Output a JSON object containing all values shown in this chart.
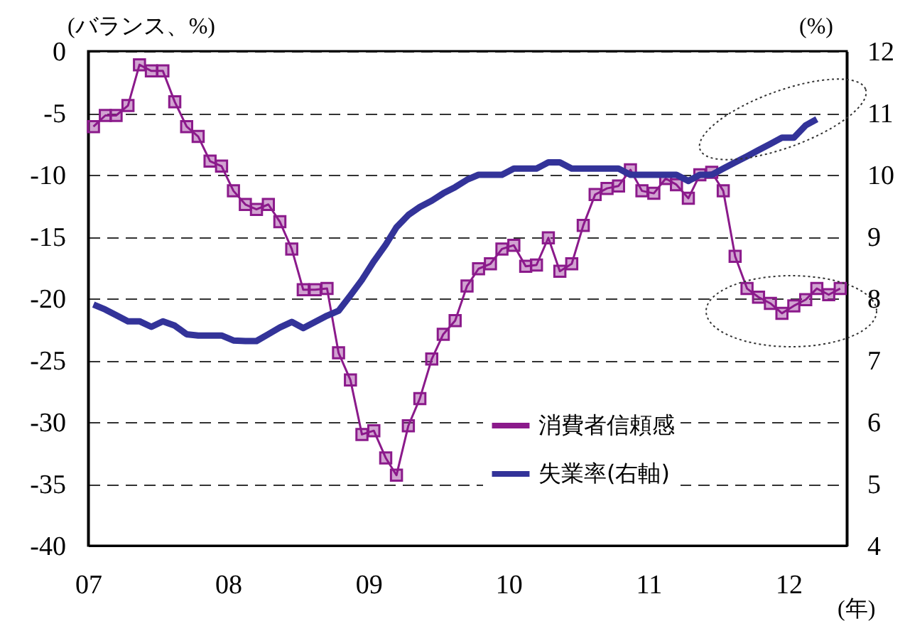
{
  "chart_data": {
    "type": "line",
    "ylabel": "(バランス、%)",
    "y2label": "(%)",
    "xlabel": "(年)",
    "x": [
      "2007-01-15",
      "2007-02-15",
      "2007-03-15",
      "2007-04-15",
      "2007-05-15",
      "2007-06-15",
      "2007-07-15",
      "2007-08-15",
      "2007-09-15",
      "2007-10-15",
      "2007-11-15",
      "2007-12-15",
      "2008-01-15",
      "2008-02-15",
      "2008-03-15",
      "2008-04-15",
      "2008-05-15",
      "2008-06-15",
      "2008-07-15",
      "2008-08-15",
      "2008-09-15",
      "2008-10-15",
      "2008-11-15",
      "2008-12-15",
      "2009-01-15",
      "2009-02-15",
      "2009-03-15",
      "2009-04-15",
      "2009-05-15",
      "2009-06-15",
      "2009-07-15",
      "2009-08-15",
      "2009-09-15",
      "2009-10-15",
      "2009-11-15",
      "2009-12-15",
      "2010-01-15",
      "2010-02-15",
      "2010-03-15",
      "2010-04-15",
      "2010-05-15",
      "2010-06-15",
      "2010-07-15",
      "2010-08-15",
      "2010-09-15",
      "2010-10-15",
      "2010-11-15",
      "2010-12-15",
      "2011-01-15",
      "2011-02-15",
      "2011-03-15",
      "2011-04-15",
      "2011-05-15",
      "2011-06-15",
      "2011-07-15",
      "2011-08-15",
      "2011-09-15",
      "2011-10-15",
      "2011-11-15",
      "2011-12-15",
      "2012-01-15",
      "2012-02-15",
      "2012-03-15",
      "2012-04-15",
      "2012-05-15"
    ],
    "series": [
      {
        "name": "消費者信頼感",
        "color": "#8b1a8b",
        "marker": "square",
        "values": [
          -6.1,
          -5.2,
          -5.2,
          -4.4,
          -1.1,
          -1.6,
          -1.6,
          -4.1,
          -6.1,
          -6.9,
          -8.9,
          -9.3,
          -11.3,
          -12.4,
          -12.8,
          -12.4,
          -13.8,
          -16.0,
          -19.3,
          -19.3,
          -19.2,
          -24.4,
          -26.6,
          -31.0,
          -30.7,
          -32.9,
          -34.3,
          -30.3,
          -28.1,
          -24.9,
          -22.9,
          -21.8,
          -19.0,
          -17.6,
          -17.2,
          -16.0,
          -15.7,
          -17.4,
          -17.3,
          -15.1,
          -17.8,
          -17.2,
          -14.1,
          -11.6,
          -11.1,
          -10.9,
          -9.6,
          -11.3,
          -11.5,
          -10.3,
          -10.8,
          -11.9,
          -10.0,
          -9.8,
          -11.3,
          -16.6,
          -19.2,
          -19.9,
          -20.4,
          -21.2,
          -20.6,
          -20.1,
          -19.2,
          -19.7,
          -19.2
        ]
      },
      {
        "name": "失業率(右軸)",
        "color": "#333399",
        "axis": "y2",
        "values": [
          7.9,
          7.82,
          7.73,
          7.63,
          7.63,
          7.54,
          7.63,
          7.56,
          7.42,
          7.4,
          7.4,
          7.4,
          7.32,
          7.31,
          7.31,
          7.42,
          7.53,
          7.62,
          7.52,
          7.62,
          7.72,
          7.8,
          8.05,
          8.3,
          8.6,
          8.87,
          9.15,
          9.35,
          9.48,
          9.58,
          9.7,
          9.8,
          9.92,
          10.0,
          10.0,
          10.0,
          10.1,
          10.1,
          10.1,
          10.2,
          10.2,
          10.1,
          10.1,
          10.1,
          10.1,
          10.1,
          10.0,
          10.0,
          10.0,
          10.0,
          10.0,
          9.9,
          10.0,
          10.0,
          10.1,
          10.2,
          10.3,
          10.4,
          10.5,
          10.6,
          10.6,
          10.8,
          10.9,
          null,
          null
        ]
      }
    ],
    "xlim": [
      "2007-01-01",
      "2012-06-01"
    ],
    "xticks": [
      {
        "value": "2007-01-01",
        "label": "07"
      },
      {
        "value": "2008-01-01",
        "label": "08"
      },
      {
        "value": "2009-01-01",
        "label": "09"
      },
      {
        "value": "2010-01-01",
        "label": "10"
      },
      {
        "value": "2011-01-01",
        "label": "11"
      },
      {
        "value": "2012-01-01",
        "label": "12"
      }
    ],
    "ylim": [
      -40,
      0
    ],
    "yticks": [
      -40,
      -35,
      -30,
      -25,
      -20,
      -15,
      -10,
      -5,
      0
    ],
    "y2lim": [
      4,
      12
    ],
    "y2ticks": [
      4,
      5,
      6,
      7,
      8,
      9,
      10,
      11,
      12
    ],
    "grid": "y",
    "legend": "bottom right",
    "line_style": "solid"
  }
}
